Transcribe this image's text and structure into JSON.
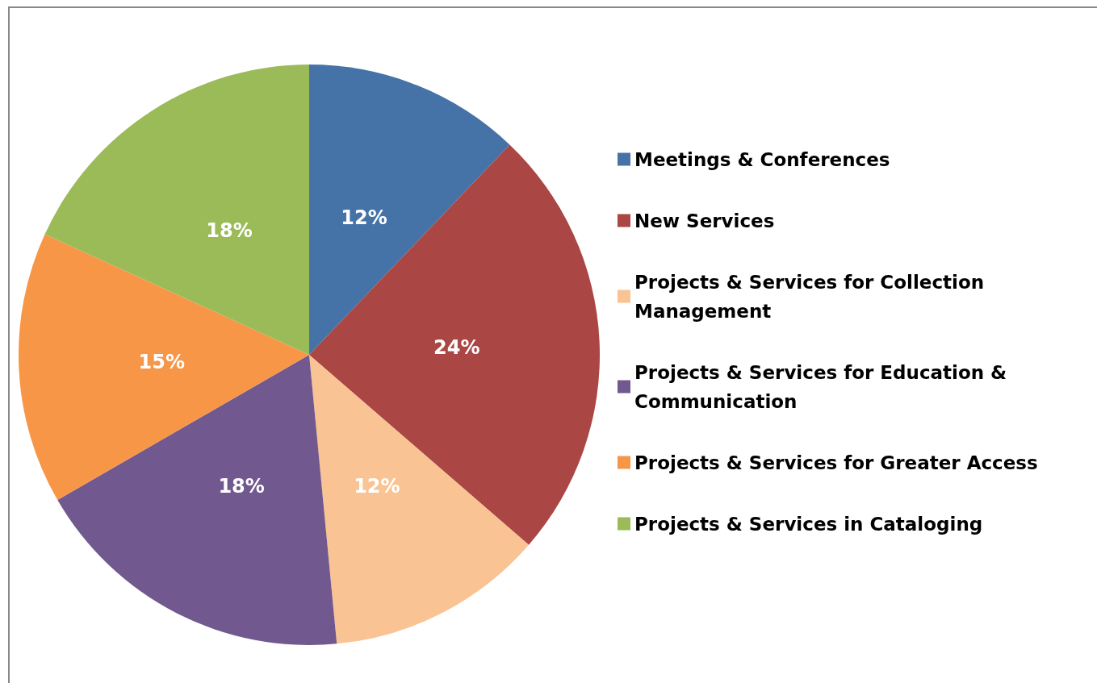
{
  "chart_data": {
    "type": "pie",
    "categories": [
      "Meetings & Conferences",
      "New Services",
      "Projects & Services for Collection Management",
      "Projects & Services for Education & Communication",
      "Projects & Services for Greater Access",
      "Projects & Services in Cataloging"
    ],
    "values": [
      12,
      24,
      12,
      18,
      15,
      18
    ],
    "value_labels": [
      "12%",
      "24%",
      "12%",
      "18%",
      "15%",
      "18%"
    ],
    "colors": [
      "#4572a7",
      "#aa4643",
      "#f9c393",
      "#71588f",
      "#f79646",
      "#9bbb59"
    ],
    "legend": "right"
  }
}
